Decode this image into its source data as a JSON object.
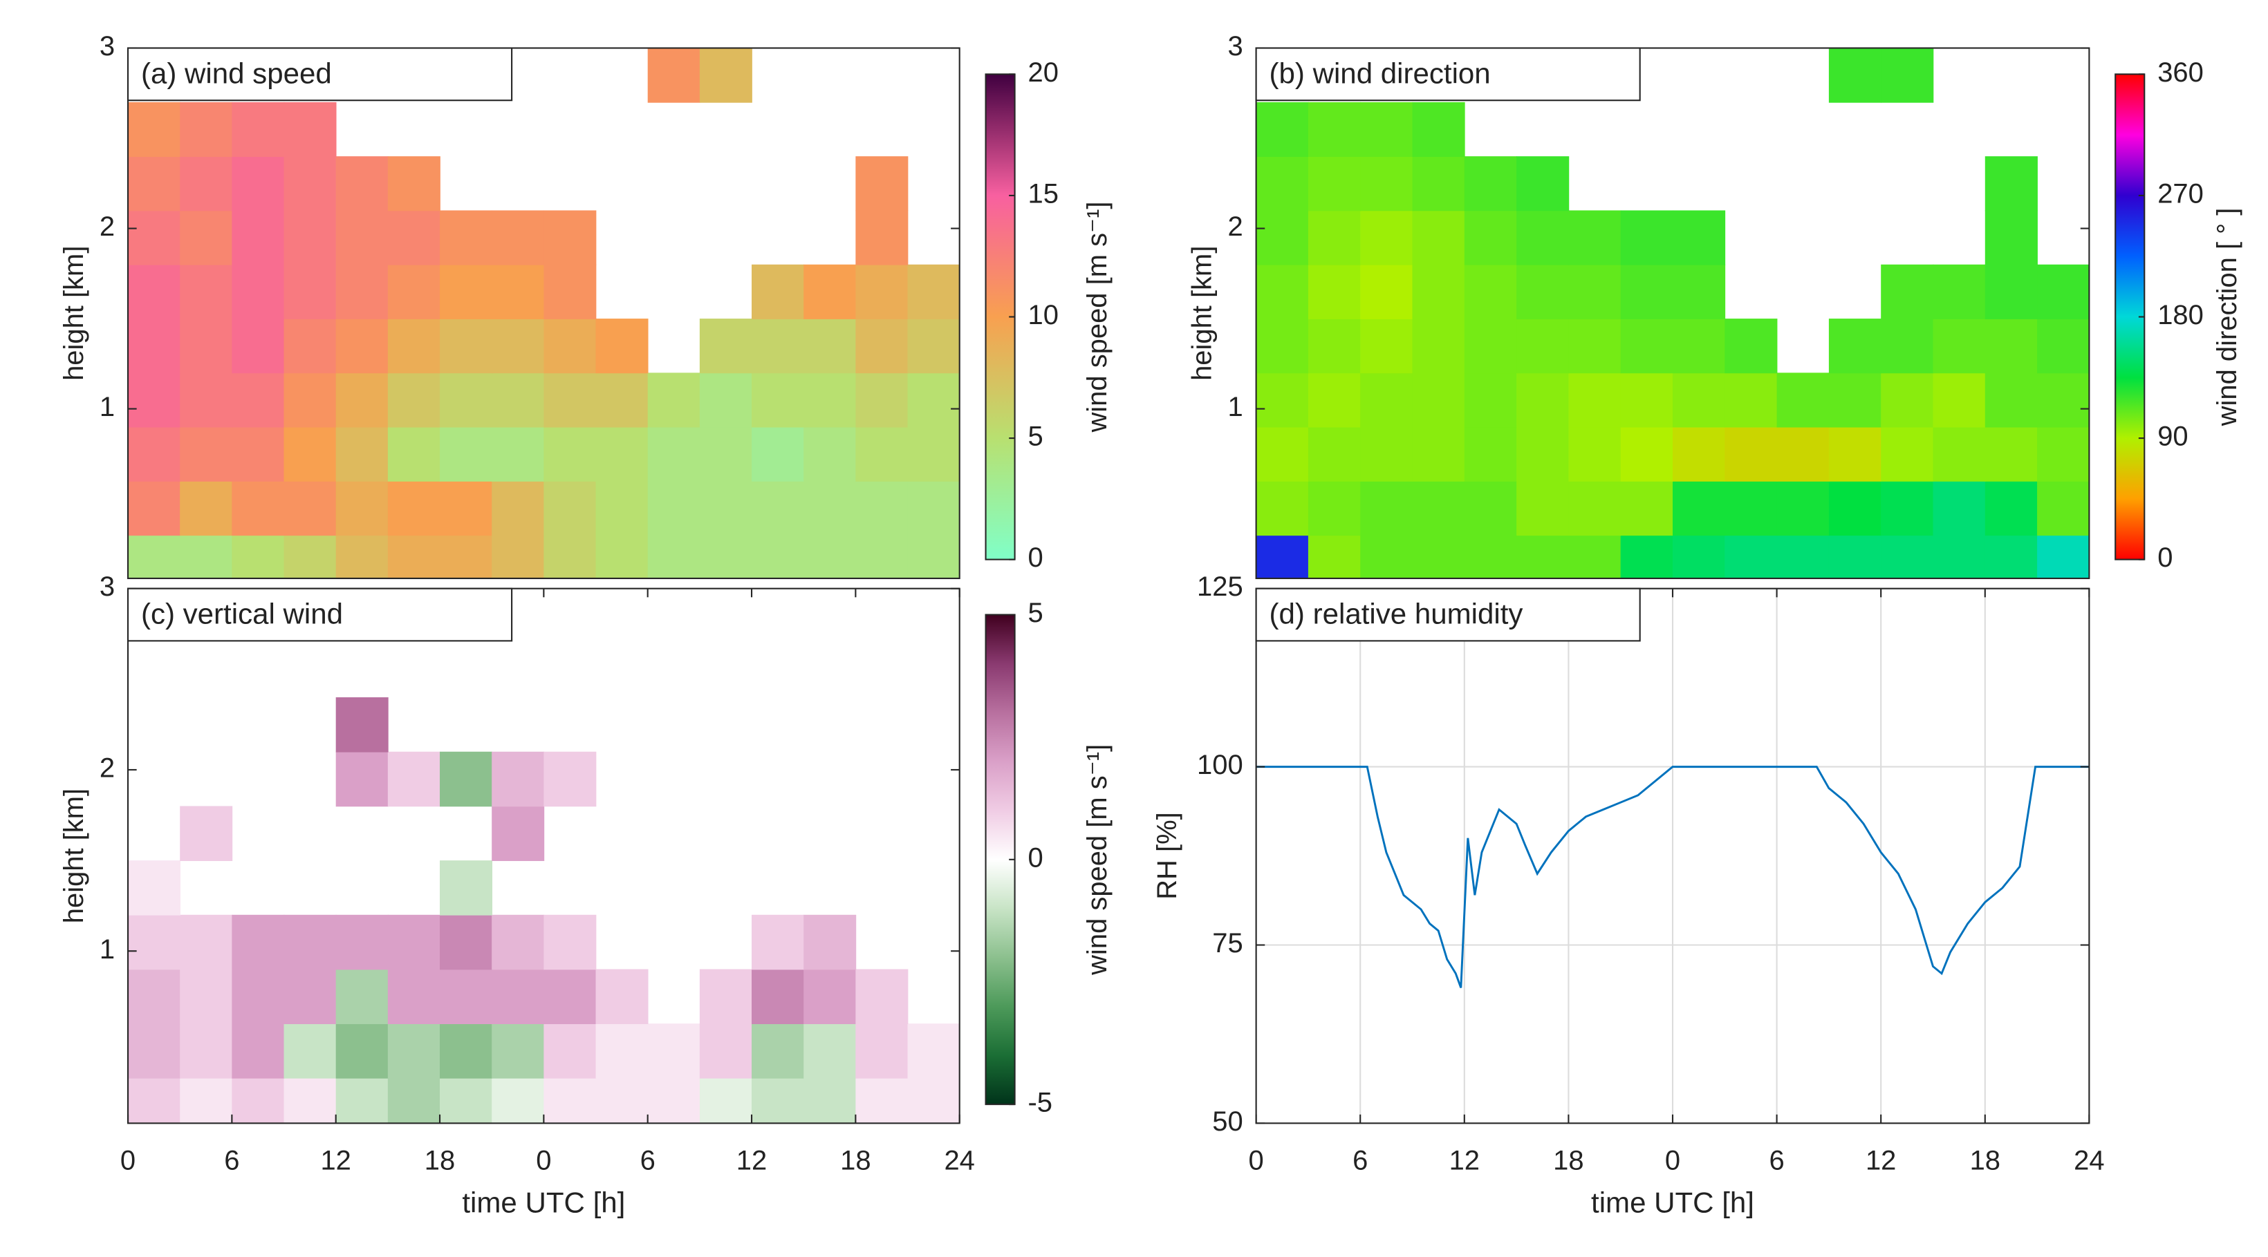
{
  "chart_data": [
    {
      "type": "heatmap",
      "title": "(a) wind speed",
      "ylabel": "height [km]",
      "xlim": [
        0,
        48
      ],
      "ylim": [
        0.06,
        3
      ],
      "yticks": [
        1,
        2,
        3
      ],
      "x": [
        1.5,
        4.5,
        7.5,
        10.5,
        13.5,
        16.5,
        19.5,
        22.5,
        25.5,
        28.5,
        31.5,
        34.5,
        37.5,
        40.5,
        43.5,
        46.5
      ],
      "y": [
        0.15,
        0.45,
        0.75,
        1.05,
        1.35,
        1.65,
        1.95,
        2.25,
        2.55,
        2.85
      ],
      "z": [
        [
          4,
          4,
          5,
          6,
          8,
          9,
          9,
          8,
          6,
          5,
          4,
          4,
          4,
          4,
          4,
          4
        ],
        [
          12,
          9,
          11,
          11,
          9,
          10,
          10,
          8,
          6,
          5,
          4,
          4,
          4,
          4,
          4,
          4
        ],
        [
          13,
          12,
          12,
          10,
          8,
          5,
          4,
          4,
          5,
          5,
          4,
          4,
          3,
          4,
          5,
          5
        ],
        [
          14,
          13,
          13,
          11,
          9,
          7,
          6,
          6,
          7,
          7,
          5,
          4,
          5,
          5,
          6,
          5
        ],
        [
          14,
          13,
          14,
          12,
          11,
          9,
          8,
          8,
          9,
          10,
          null,
          6,
          6,
          6,
          8,
          7
        ],
        [
          14,
          13,
          14,
          13,
          12,
          11,
          10,
          10,
          11,
          null,
          null,
          null,
          8,
          10,
          9,
          8
        ],
        [
          13,
          12,
          14,
          13,
          12,
          12,
          11,
          11,
          11,
          null,
          null,
          null,
          null,
          null,
          11,
          null
        ],
        [
          12,
          13,
          14,
          13,
          12,
          11,
          null,
          null,
          null,
          null,
          null,
          null,
          null,
          null,
          11,
          null
        ],
        [
          11,
          12,
          13,
          13,
          null,
          null,
          null,
          null,
          null,
          null,
          null,
          null,
          null,
          null,
          null,
          null
        ],
        [
          null,
          null,
          null,
          null,
          null,
          null,
          null,
          null,
          null,
          null,
          11,
          8,
          null,
          null,
          null,
          null
        ]
      ],
      "colorbar": {
        "lim": [
          0,
          20
        ],
        "ticks": [
          0,
          5,
          10,
          15,
          20
        ],
        "label": "wind speed [m s⁻¹]",
        "colors": [
          "#80ffc8",
          "#b8e070",
          "#f8a050",
          "#f860a0",
          "#400040"
        ]
      }
    },
    {
      "type": "heatmap",
      "title": "(b) wind direction",
      "ylabel": "height [km]",
      "xlim": [
        0,
        48
      ],
      "ylim": [
        0.06,
        3
      ],
      "yticks": [
        1,
        2,
        3
      ],
      "x": [
        1.5,
        4.5,
        7.5,
        10.5,
        13.5,
        16.5,
        19.5,
        22.5,
        25.5,
        28.5,
        31.5,
        34.5,
        37.5,
        40.5,
        43.5,
        46.5
      ],
      "y": [
        0.15,
        0.45,
        0.75,
        1.05,
        1.35,
        1.65,
        1.95,
        2.25,
        2.55,
        2.85
      ],
      "z": [
        [
          250,
          100,
          110,
          110,
          110,
          110,
          110,
          140,
          145,
          150,
          150,
          150,
          150,
          150,
          150,
          170
        ],
        [
          100,
          105,
          110,
          110,
          110,
          100,
          100,
          100,
          130,
          130,
          130,
          135,
          140,
          150,
          140,
          110
        ],
        [
          95,
          100,
          100,
          100,
          105,
          100,
          95,
          90,
          80,
          75,
          75,
          80,
          95,
          100,
          100,
          105
        ],
        [
          100,
          95,
          100,
          100,
          105,
          100,
          95,
          95,
          100,
          100,
          110,
          110,
          100,
          95,
          110,
          110
        ],
        [
          105,
          100,
          95,
          100,
          105,
          105,
          105,
          110,
          110,
          115,
          null,
          115,
          115,
          110,
          110,
          115
        ],
        [
          105,
          95,
          90,
          100,
          105,
          110,
          110,
          115,
          115,
          null,
          null,
          null,
          115,
          115,
          120,
          120
        ],
        [
          110,
          100,
          95,
          100,
          110,
          115,
          115,
          120,
          120,
          null,
          null,
          null,
          null,
          null,
          120,
          null
        ],
        [
          110,
          105,
          105,
          110,
          115,
          120,
          null,
          null,
          null,
          null,
          null,
          null,
          null,
          null,
          120,
          null
        ],
        [
          115,
          110,
          110,
          115,
          null,
          null,
          null,
          null,
          null,
          null,
          null,
          null,
          null,
          null,
          null,
          null
        ],
        [
          null,
          null,
          null,
          null,
          null,
          null,
          null,
          null,
          null,
          null,
          null,
          120,
          120,
          null,
          null,
          null
        ]
      ],
      "colorbar": {
        "lim": [
          0,
          360
        ],
        "ticks": [
          0,
          90,
          180,
          270,
          360
        ],
        "label": "wind direction [ ° ]",
        "colors": [
          "#ff0000",
          "#ffa000",
          "#b0f000",
          "#00e040",
          "#00d8d8",
          "#0060ff",
          "#3000d0",
          "#ff00e0",
          "#ff0000"
        ]
      }
    },
    {
      "type": "heatmap",
      "title": "(c) vertical wind",
      "ylabel": "height [km]",
      "xlabel": "time UTC [h]",
      "xlim": [
        0,
        48
      ],
      "ylim": [
        0.05,
        3
      ],
      "yticks": [
        1,
        2,
        3
      ],
      "xticks": [
        0,
        6,
        12,
        18,
        {
          "value": 24,
          "label": "0"
        },
        {
          "value": 30,
          "label": "6"
        },
        {
          "value": 36,
          "label": "12"
        },
        {
          "value": 42,
          "label": "18"
        },
        {
          "value": 48,
          "label": "24"
        }
      ],
      "x": [
        1.5,
        4.5,
        7.5,
        10.5,
        13.5,
        16.5,
        19.5,
        22.5,
        25.5,
        28.5,
        31.5,
        34.5,
        37.5,
        40.5,
        43.5,
        46.5
      ],
      "y": [
        0.15,
        0.45,
        0.75,
        1.05,
        1.35,
        1.65,
        1.95,
        2.25,
        2.55,
        2.85
      ],
      "z": [
        [
          1,
          0.5,
          1,
          0.5,
          -1,
          -1.5,
          -1,
          -0.5,
          0.5,
          0.5,
          0.5,
          -0.5,
          -1,
          -1,
          0.5,
          0.5
        ],
        [
          1.5,
          1,
          2,
          -1,
          -2,
          -1.5,
          -2,
          -1.5,
          1,
          0.5,
          0.5,
          1,
          -1.5,
          -1,
          1,
          0.5
        ],
        [
          1.5,
          1,
          2,
          2,
          -1.5,
          2,
          2,
          2,
          2,
          1,
          null,
          1,
          2.5,
          2,
          1,
          null
        ],
        [
          1,
          1,
          2,
          2,
          2,
          2,
          2.5,
          1.5,
          1,
          null,
          null,
          null,
          1,
          1.5,
          null,
          null
        ],
        [
          0.5,
          null,
          null,
          null,
          null,
          null,
          -1,
          null,
          null,
          null,
          null,
          null,
          null,
          null,
          null,
          null
        ],
        [
          null,
          1,
          null,
          null,
          null,
          null,
          null,
          2,
          null,
          null,
          null,
          null,
          null,
          null,
          null,
          null
        ],
        [
          null,
          null,
          null,
          null,
          2,
          1,
          -2,
          1.5,
          1,
          null,
          null,
          null,
          null,
          null,
          null,
          null
        ],
        [
          null,
          null,
          null,
          null,
          3,
          null,
          null,
          null,
          null,
          null,
          null,
          null,
          null,
          null,
          null,
          null
        ],
        [
          null,
          null,
          null,
          null,
          null,
          null,
          null,
          null,
          null,
          null,
          null,
          null,
          null,
          null,
          null,
          null
        ],
        [
          null,
          null,
          null,
          null,
          null,
          null,
          null,
          null,
          null,
          null,
          null,
          null,
          null,
          null,
          null,
          null
        ]
      ],
      "colorbar": {
        "lim": [
          -5,
          5
        ],
        "ticks": [
          -5,
          0,
          5
        ],
        "label": "wind speed [m s⁻¹]",
        "colors": [
          "#00331a",
          "#1b6e35",
          "#4d9a5a",
          "#8cc08e",
          "#c8e4c6",
          "#ffffff",
          "#f0cce4",
          "#daa0c8",
          "#b8709f",
          "#8a3a70",
          "#40001f"
        ]
      }
    },
    {
      "type": "line",
      "title": "(d) relative humidity",
      "ylabel": "RH [%]",
      "xlabel": "time UTC [h]",
      "xlim": [
        0,
        48
      ],
      "ylim": [
        50,
        125
      ],
      "yticks": [
        50,
        75,
        100,
        125
      ],
      "grid": true,
      "xticks": [
        0,
        6,
        12,
        18,
        {
          "value": 24,
          "label": "0"
        },
        {
          "value": 30,
          "label": "6"
        },
        {
          "value": 36,
          "label": "12"
        },
        {
          "value": 42,
          "label": "18"
        },
        {
          "value": 48,
          "label": "24"
        }
      ],
      "color": "#0072bd",
      "x": [
        0,
        6.4,
        7,
        7.5,
        8,
        8.5,
        9,
        9.5,
        10,
        10.5,
        11,
        11.5,
        11.8,
        12.2,
        12.6,
        13,
        13.5,
        14,
        15,
        15.5,
        16.2,
        17,
        18,
        19,
        20,
        21,
        22,
        23,
        24,
        30,
        32.3,
        33,
        34,
        35,
        36,
        37,
        38,
        38.5,
        39,
        39.5,
        40,
        41,
        42,
        43,
        44,
        44.9,
        48
      ],
      "y": [
        100,
        100,
        93,
        88,
        85,
        82,
        81,
        80,
        78,
        77,
        73,
        71,
        69,
        90,
        82,
        88,
        91,
        94,
        92,
        89,
        85,
        88,
        91,
        93,
        94,
        95,
        96,
        98,
        100,
        100,
        100,
        97,
        95,
        92,
        88,
        85,
        80,
        76,
        72,
        71,
        74,
        78,
        81,
        83,
        86,
        100,
        100
      ]
    }
  ]
}
